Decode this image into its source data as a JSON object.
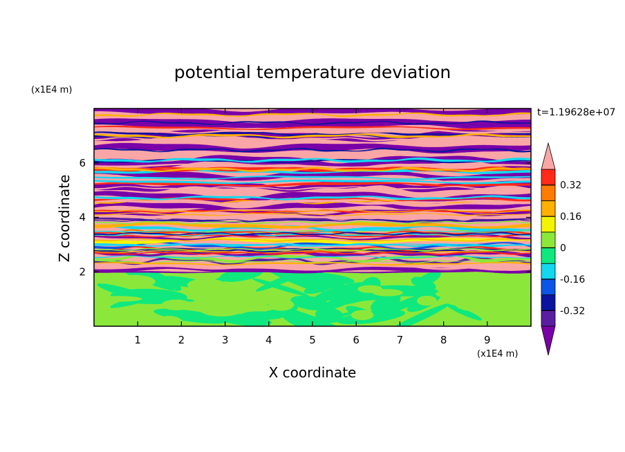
{
  "chart_data": {
    "type": "heatmap",
    "title": "potential temperature deviation",
    "xlabel": "X coordinate",
    "ylabel": "Z coordinate",
    "x_unit": "(x1E4 m)",
    "y_unit": "(x1E4 m)",
    "time_label": "t=1.19628e+07",
    "xlim": [
      0,
      10
    ],
    "ylim": [
      0,
      8
    ],
    "x_ticks": [
      "1",
      "2",
      "3",
      "4",
      "5",
      "6",
      "7",
      "8",
      "9"
    ],
    "y_ticks": [
      "2",
      "4",
      "6"
    ],
    "colorbar": {
      "levels": [
        -0.48,
        -0.4,
        -0.32,
        -0.24,
        -0.16,
        -0.08,
        0,
        0.08,
        0.16,
        0.24,
        0.32,
        0.4,
        0.48
      ],
      "colors": [
        "#7a00a8",
        "#5a1fa0",
        "#0c149e",
        "#0d55e6",
        "#12d8f0",
        "#0fe87e",
        "#8be83a",
        "#f4f400",
        "#ffb000",
        "#ff7a00",
        "#ff2a1a",
        "#fba6a6"
      ],
      "tick_labels": [
        "0.32",
        "0.16",
        "0",
        "-0.16",
        "-0.32"
      ],
      "tick_values": [
        0.32,
        0.16,
        0,
        -0.16,
        -0.32
      ]
    },
    "regions": [
      {
        "z_range": [
          0,
          2.0
        ],
        "description": "near-neutral lower layer",
        "dominant_values": [
          -0.04,
          0.04
        ]
      },
      {
        "z_range": [
          2.0,
          4.2
        ],
        "description": "mixed banded layer",
        "dominant_values": [
          -0.48,
          0.48
        ]
      },
      {
        "z_range": [
          4.2,
          8.0
        ],
        "description": "alternating strong bands",
        "dominant_values": [
          -0.48,
          0.48
        ]
      }
    ]
  }
}
